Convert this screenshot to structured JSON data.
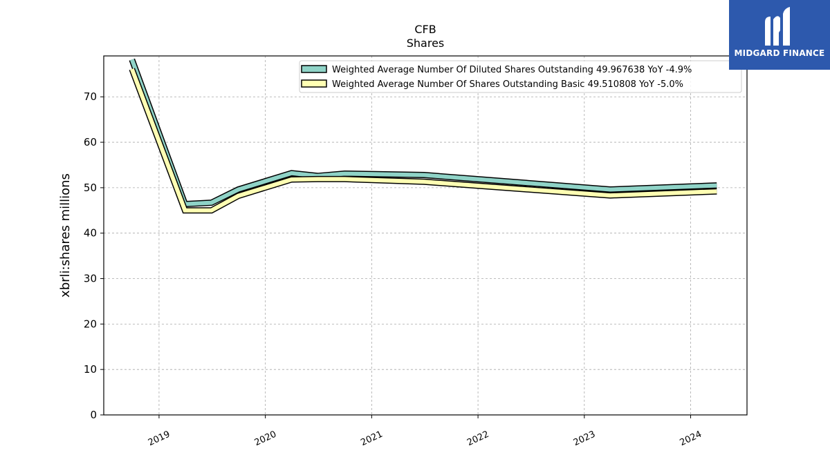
{
  "chart_data": {
    "type": "area",
    "title": "CFB",
    "subtitle": "Shares",
    "ylabel": "xbrli:shares millions",
    "xlabel": "",
    "ylim": [
      0,
      79
    ],
    "xlim": [
      2018.48,
      2024.53
    ],
    "y_ticks": [
      0,
      10,
      20,
      30,
      40,
      50,
      60,
      70
    ],
    "x_ticks": [
      {
        "label": "2019",
        "value": 2019.0
      },
      {
        "label": "2020",
        "value": 2020.0
      },
      {
        "label": "2021",
        "value": 2021.0
      },
      {
        "label": "2022",
        "value": 2022.0
      },
      {
        "label": "2023",
        "value": 2023.0
      },
      {
        "label": "2024",
        "value": 2024.0
      }
    ],
    "grid": true,
    "legend_position": "top-right",
    "series": [
      {
        "name": "Weighted Average Number Of Diluted Shares Outstanding  49.967638 YoY -4.9%",
        "color": "#8fd3c7",
        "x": [
          "2018-09-30",
          "2019-03-31",
          "2019-06-30",
          "2019-09-30",
          "2020-03-31",
          "2020-06-30",
          "2020-09-30",
          "2021-06-30",
          "2023-03-31",
          "2024-03-31"
        ],
        "values": [
          78.2,
          46.4,
          46.7,
          49.6,
          53.2,
          52.6,
          53.1,
          52.8,
          49.6,
          50.5
        ]
      },
      {
        "name": "Weighted Average Number Of Shares Outstanding Basic  49.510808 YoY -5.0%",
        "color": "#ffffb3",
        "x": [
          "2018-09-30",
          "2019-03-31",
          "2019-06-30",
          "2019-09-30",
          "2020-03-31",
          "2020-06-30",
          "2020-09-30",
          "2021-06-30",
          "2023-03-31",
          "2024-03-31"
        ],
        "values": [
          76.1,
          45.0,
          45.0,
          48.2,
          51.8,
          51.9,
          51.9,
          51.3,
          48.3,
          49.2
        ]
      }
    ]
  },
  "logo": {
    "text": "MIDGARD FINANCE",
    "color": "#2d59ad"
  }
}
